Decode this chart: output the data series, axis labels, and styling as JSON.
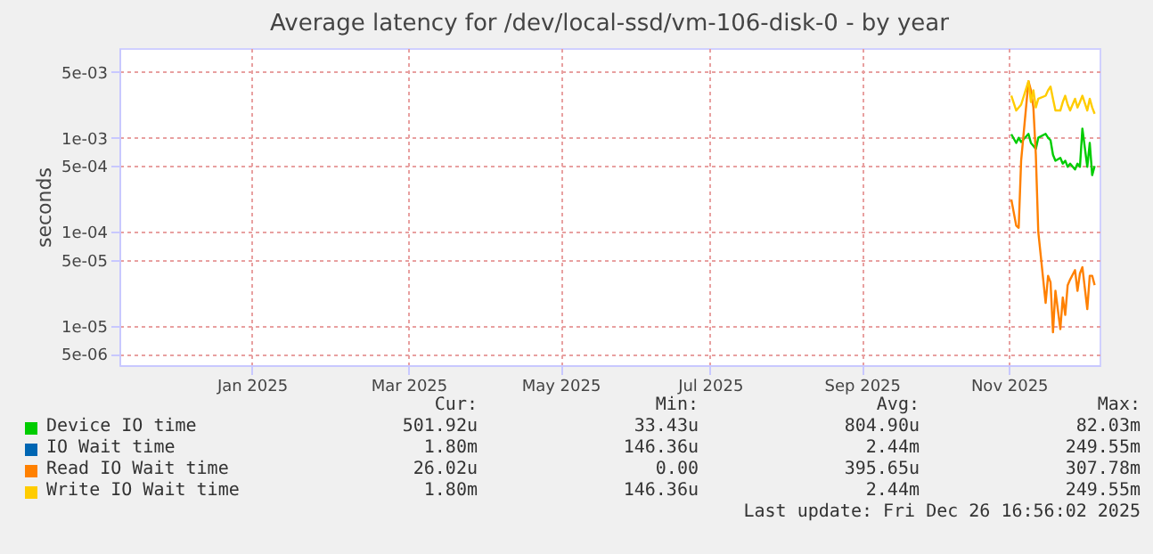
{
  "chart_data": {
    "type": "line",
    "title": "Average latency for /dev/local-ssd/vm-106-disk-0 - by year",
    "ylabel": "seconds",
    "log": true,
    "grid": true,
    "legend": "bottom",
    "line_style": "solid",
    "xlim": [
      "2024-11-21",
      "2025-12-26"
    ],
    "xticks": [
      {
        "value": "2025-01-14",
        "label": "Jan 2025"
      },
      {
        "value": "2025-03-19",
        "label": "Mar 2025"
      },
      {
        "value": "2025-05-20",
        "label": "May 2025"
      },
      {
        "value": "2025-07-20",
        "label": "Jul 2025"
      },
      {
        "value": "2025-09-20",
        "label": "Sep 2025"
      },
      {
        "value": "2025-11-19",
        "label": "Nov 2025"
      }
    ],
    "ylim": [
      3.8e-06,
      0.009
    ],
    "yticks": [
      {
        "value": 5e-06,
        "label": "5e-06"
      },
      {
        "value": 1e-05,
        "label": "1e-05"
      },
      {
        "value": 5e-05,
        "label": "5e-05"
      },
      {
        "value": 0.0001,
        "label": "1e-04"
      },
      {
        "value": 0.0005,
        "label": "5e-04"
      },
      {
        "value": 0.001,
        "label": "1e-03"
      },
      {
        "value": 0.005,
        "label": "5e-03"
      }
    ],
    "x": [
      "2025-11-20",
      "2025-11-22",
      "2025-11-23",
      "2025-11-24",
      "2025-11-27",
      "2025-11-28",
      "2025-11-29",
      "2025-11-30",
      "2025-12-01",
      "2025-12-04",
      "2025-12-05",
      "2025-12-06",
      "2025-12-07",
      "2025-12-08",
      "2025-12-10",
      "2025-12-11",
      "2025-12-12",
      "2025-12-13",
      "2025-12-14",
      "2025-12-16",
      "2025-12-17",
      "2025-12-18",
      "2025-12-19",
      "2025-12-21",
      "2025-12-22",
      "2025-12-23",
      "2025-12-24"
    ],
    "series": [
      {
        "name": "Device IO time",
        "color": "#00cc00",
        "values": [
          0.00109,
          0.00088,
          0.001,
          0.0009,
          0.0011,
          0.00088,
          0.00082,
          0.00076,
          0.001,
          0.0011,
          0.001,
          0.00094,
          0.00066,
          0.00057,
          0.00061,
          0.00053,
          0.00057,
          0.00049,
          0.00053,
          0.00046,
          0.00053,
          0.00049,
          0.00125,
          0.00049,
          0.00088,
          0.0004,
          0.0005
        ]
      },
      {
        "name": "IO Wait time",
        "color": "#0066b3",
        "values": [
          null,
          null,
          null,
          null,
          null,
          null,
          null,
          null,
          null,
          null,
          null,
          null,
          null,
          null,
          null,
          null,
          null,
          null,
          null,
          null,
          null,
          null,
          null,
          null,
          null,
          null,
          null
        ]
      },
      {
        "name": "Read IO Wait time",
        "color": "#ff8000",
        "values": [
          0.00022,
          0.000116,
          0.00011,
          0.00057,
          0.004,
          0.0032,
          0.0021,
          0.00066,
          0.0001,
          1.75e-05,
          3.4e-05,
          2.9e-05,
          8.5e-06,
          2.35e-05,
          9.2e-06,
          2e-05,
          1.3e-05,
          2.7e-05,
          3.1e-05,
          3.9e-05,
          2.35e-05,
          3.6e-05,
          4.2e-05,
          1.5e-05,
          3.4e-05,
          3.4e-05,
          2.7e-05
        ]
      },
      {
        "name": "Write IO Wait time",
        "color": "#ffcc00",
        "values": [
          0.0028,
          0.00195,
          0.0021,
          0.00225,
          0.004,
          0.0024,
          0.0032,
          0.0021,
          0.0026,
          0.0028,
          0.0032,
          0.0035,
          0.0026,
          0.00195,
          0.00195,
          0.0024,
          0.0028,
          0.00225,
          0.00195,
          0.0026,
          0.0021,
          0.0024,
          0.0028,
          0.00195,
          0.0026,
          0.0021,
          0.0018
        ]
      }
    ],
    "annotations": [
      "Cur:",
      "Min:",
      "Avg:",
      "Max:",
      "501.92u",
      "33.43u",
      "804.90u",
      "82.03m",
      "1.80m",
      "146.36u",
      "2.44m",
      "249.55m",
      "26.02u",
      "0.00",
      "395.65u",
      "307.78m",
      "1.80m",
      "146.36u",
      "2.44m",
      "249.55m",
      "Last update: Fri Dec 26 16:56:02 2025"
    ]
  }
}
